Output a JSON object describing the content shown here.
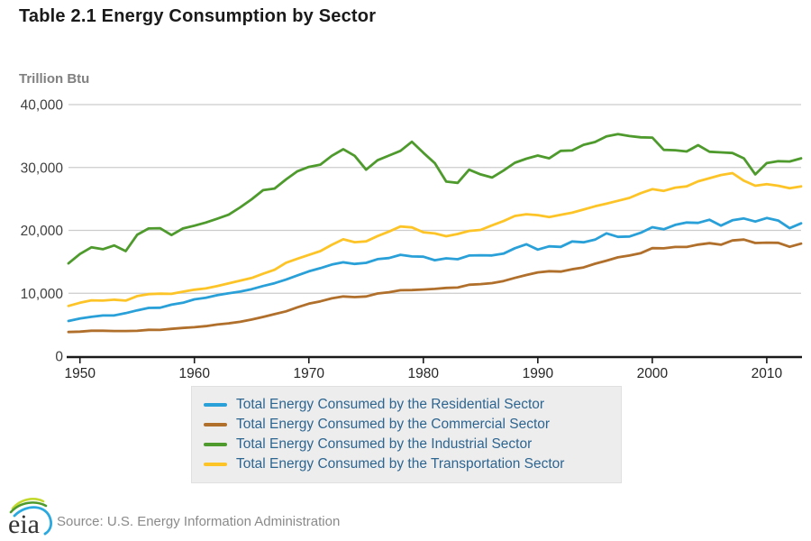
{
  "page": {
    "title": "Table 2.1 Energy Consumption by Sector",
    "source": "Source: U.S. Energy Information Administration",
    "logo_text": "eia"
  },
  "chart_data": {
    "type": "line",
    "title": "Table 2.1 Energy Consumption by Sector",
    "ylabel": "Trillion Btu",
    "xlabel": "",
    "ylim": [
      0,
      40000
    ],
    "x_start": 1949,
    "x_end": 2013,
    "x_step": 1,
    "x_ticks": [
      1950,
      1960,
      1970,
      1980,
      1990,
      2000,
      2010
    ],
    "y_ticks": [
      0,
      10000,
      20000,
      30000,
      40000
    ],
    "y_tick_labels": [
      "0",
      "10,000",
      "20,000",
      "30,000",
      "40,000"
    ],
    "grid": "horizontal",
    "legend_position": "bottom",
    "colors": {
      "grid": "#cccccc",
      "axis": "#1a1a1a",
      "axis_text": "#404040",
      "legend_text": "#2d6591"
    },
    "series": [
      {
        "key": "residential",
        "name": "Total Energy Consumed by the Residential Sector",
        "color": "#29A0D8",
        "values": [
          5589,
          5989,
          6245,
          6463,
          6480,
          6839,
          7278,
          7675,
          7701,
          8184,
          8492,
          9039,
          9295,
          9698,
          9987,
          10272,
          10648,
          11152,
          11596,
          12169,
          12847,
          13498,
          13986,
          14561,
          14925,
          14670,
          14842,
          15427,
          15596,
          16115,
          15855,
          15808,
          15258,
          15549,
          15410,
          15996,
          16041,
          16017,
          16294,
          17155,
          17792,
          16944,
          17456,
          17375,
          18237,
          18107,
          18519,
          19533,
          18963,
          19019,
          19621,
          20498,
          20179,
          20878,
          21242,
          21190,
          21697,
          20755,
          21604,
          21888,
          21399,
          21968,
          21566,
          20351,
          21125
        ]
      },
      {
        "key": "commercial",
        "name": "Total Energy Consumed by the Commercial Sector",
        "color": "#B06F2B",
        "values": [
          3842,
          3893,
          4048,
          4043,
          4000,
          3995,
          4028,
          4181,
          4169,
          4348,
          4484,
          4609,
          4779,
          5028,
          5213,
          5467,
          5822,
          6232,
          6674,
          7132,
          7766,
          8346,
          8713,
          9191,
          9491,
          9385,
          9493,
          9967,
          10161,
          10487,
          10505,
          10590,
          10690,
          10852,
          10907,
          11353,
          11451,
          11611,
          11944,
          12449,
          12909,
          13320,
          13508,
          13441,
          13824,
          14109,
          14696,
          15186,
          15720,
          16002,
          16383,
          17175,
          17141,
          17366,
          17357,
          17734,
          17968,
          17727,
          18397,
          18542,
          17997,
          18057,
          18021,
          17396,
          17893
        ]
      },
      {
        "key": "industrial",
        "name": "Total Energy Consumed by the Industrial Sector",
        "color": "#4E9A2D",
        "values": [
          14750,
          16250,
          17300,
          17000,
          17600,
          16700,
          19300,
          20300,
          20350,
          19250,
          20300,
          20750,
          21250,
          21850,
          22500,
          23650,
          24950,
          26400,
          26650,
          28100,
          29400,
          30100,
          30450,
          31850,
          32900,
          31850,
          29650,
          31150,
          31900,
          32650,
          34100,
          32350,
          30700,
          27750,
          27550,
          29650,
          28900,
          28400,
          29500,
          30750,
          31400,
          31900,
          31450,
          32650,
          32700,
          33600,
          34050,
          34950,
          35300,
          35000,
          34800,
          34750,
          32800,
          32750,
          32550,
          33550,
          32500,
          32400,
          32300,
          31450,
          28900,
          30700,
          31000,
          30950,
          31450
        ]
      },
      {
        "key": "transportation",
        "name": "Total Energy Consumed by the Transportation Sector",
        "color": "#FDC428",
        "values": [
          7990,
          8492,
          8870,
          8830,
          8970,
          8830,
          9550,
          9860,
          9930,
          9900,
          10250,
          10560,
          10760,
          11160,
          11590,
          12000,
          12430,
          13100,
          13740,
          14860,
          15500,
          16098,
          16700,
          17700,
          18576,
          18120,
          18245,
          19100,
          19820,
          20615,
          20470,
          19700,
          19510,
          19070,
          19420,
          19910,
          20070,
          20800,
          21470,
          22300,
          22560,
          22420,
          22120,
          22465,
          22810,
          23310,
          23825,
          24240,
          24700,
          25160,
          25920,
          26555,
          26280,
          26790,
          27000,
          27800,
          28300,
          28800,
          29100,
          27900,
          27100,
          27350,
          27100,
          26700,
          27000
        ]
      }
    ]
  }
}
